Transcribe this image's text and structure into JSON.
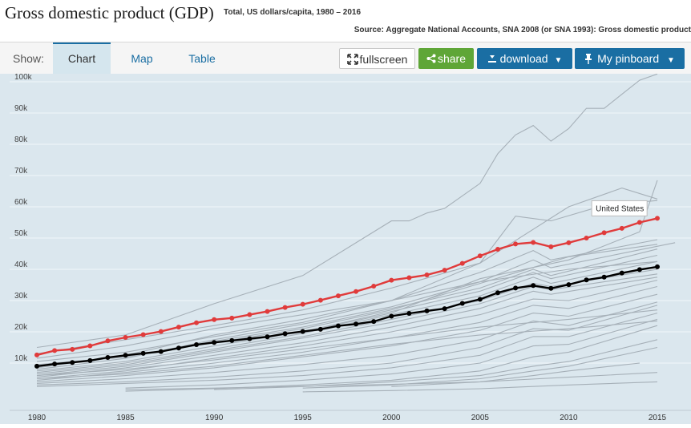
{
  "header": {
    "title": "Gross domestic product (GDP)",
    "subtitle": "Total, US dollars/capita, 1980 – 2016",
    "source": "Source: Aggregate National Accounts, SNA 2008 (or SNA 1993): Gross domestic product"
  },
  "toolbar": {
    "show_label": "Show:",
    "tabs": [
      {
        "label": "Chart"
      },
      {
        "label": "Map"
      },
      {
        "label": "Table"
      }
    ],
    "fullscreen_label": "fullscreen",
    "share_label": "share",
    "download_label": "download",
    "pinboard_label": "My pinboard"
  },
  "colors": {
    "highlight": "#e03b3b",
    "average": "#000000",
    "background_lines": "#a6b0b8",
    "plot_bg": "#dbe7ee",
    "brand": "#1a6ea3",
    "share": "#5fa637"
  },
  "icons": [
    "fullscreen-icon",
    "share-icon",
    "download-icon",
    "pin-icon",
    "chevron-down-icon"
  ],
  "chart_data": {
    "type": "line",
    "title": "Gross domestic product (GDP)",
    "subtitle": "Total, US dollars/capita, 1980 – 2016",
    "ylim": [
      0,
      105000
    ],
    "xlim": [
      1980,
      2016
    ],
    "x_ticks": [
      "1980",
      "1985",
      "1990",
      "1995",
      "2000",
      "2005",
      "2010",
      "2015"
    ],
    "y_ticks": [
      {
        "value": 10000,
        "label": "10k"
      },
      {
        "value": 20000,
        "label": "20k"
      },
      {
        "value": 30000,
        "label": "30k"
      },
      {
        "value": 40000,
        "label": "40k"
      },
      {
        "value": 50000,
        "label": "50k"
      },
      {
        "value": 60000,
        "label": "60k"
      },
      {
        "value": 70000,
        "label": "70k"
      },
      {
        "value": 80000,
        "label": "80k"
      },
      {
        "value": 90000,
        "label": "90k"
      },
      {
        "value": 100000,
        "label": "100k"
      }
    ],
    "grid": true,
    "highlighted": {
      "name": "United States",
      "x": [
        1980,
        1981,
        1982,
        1983,
        1984,
        1985,
        1986,
        1987,
        1988,
        1989,
        1990,
        1991,
        1992,
        1993,
        1994,
        1995,
        1996,
        1997,
        1998,
        1999,
        2000,
        2001,
        2002,
        2003,
        2004,
        2005,
        2006,
        2007,
        2008,
        2009,
        2010,
        2011,
        2012,
        2013,
        2014,
        2015
      ],
      "values": [
        12600,
        14000,
        14400,
        15500,
        17100,
        18200,
        19100,
        20100,
        21500,
        22900,
        23900,
        24400,
        25500,
        26500,
        27800,
        28800,
        30100,
        31500,
        32900,
        34600,
        36500,
        37300,
        38200,
        39700,
        41900,
        44300,
        46400,
        48100,
        48600,
        47200,
        48500,
        50000,
        51700,
        53100,
        55000,
        56300
      ]
    },
    "average": {
      "x": [
        1980,
        1981,
        1982,
        1983,
        1984,
        1985,
        1986,
        1987,
        1988,
        1989,
        1990,
        1991,
        1992,
        1993,
        1994,
        1995,
        1996,
        1997,
        1998,
        1999,
        2000,
        2001,
        2002,
        2003,
        2004,
        2005,
        2006,
        2007,
        2008,
        2009,
        2010,
        2011,
        2012,
        2013,
        2014,
        2015
      ],
      "values": [
        9000,
        9700,
        10200,
        10800,
        11800,
        12500,
        13100,
        13700,
        14800,
        15900,
        16600,
        17200,
        17800,
        18400,
        19400,
        20100,
        20800,
        21900,
        22500,
        23300,
        25000,
        25900,
        26700,
        27400,
        29100,
        30400,
        32500,
        34000,
        34800,
        33900,
        35100,
        36600,
        37500,
        38800,
        39900,
        40800
      ]
    },
    "background_series": [
      {
        "x": [
          1980,
          1985,
          1990,
          1995,
          2000,
          2001,
          2002,
          2003,
          2005,
          2006,
          2007,
          2008,
          2009,
          2010,
          2011,
          2012,
          2013,
          2014,
          2015
        ],
        "values": [
          15000,
          19000,
          29000,
          38000,
          55500,
          55500,
          58000,
          59500,
          67500,
          77000,
          83000,
          86000,
          81000,
          85000,
          91500,
          91500,
          96000,
          100500,
          102500
        ]
      },
      {
        "x": [
          1980,
          1985,
          1990,
          1995,
          2000,
          2005,
          2010,
          2013,
          2015
        ],
        "values": [
          13000,
          17500,
          22000,
          27000,
          34000,
          42000,
          60000,
          66000,
          62500
        ]
      },
      {
        "x": [
          1980,
          1985,
          1990,
          1995,
          2000,
          2005,
          2007,
          2009,
          2012,
          2015
        ],
        "values": [
          10500,
          13500,
          18500,
          23000,
          30000,
          42000,
          57000,
          55500,
          60500,
          62000
        ]
      },
      {
        "x": [
          1995,
          2000,
          2005,
          2010,
          2014,
          2015
        ],
        "values": [
          20000,
          26000,
          37000,
          43000,
          52000,
          68500
        ]
      },
      {
        "x": [
          1980,
          1985,
          1990,
          1995,
          2000,
          2005,
          2008,
          2009,
          2015
        ],
        "values": [
          8500,
          12500,
          19000,
          24000,
          30000,
          39000,
          46000,
          43000,
          49500
        ]
      },
      {
        "x": [
          1980,
          1985,
          1990,
          1995,
          2000,
          2005,
          2008,
          2009,
          2016
        ],
        "values": [
          8000,
          11500,
          17500,
          22500,
          28000,
          36000,
          43000,
          40500,
          48500
        ]
      },
      {
        "x": [
          1980,
          1985,
          1990,
          1995,
          2000,
          2005,
          2008,
          2009,
          2015
        ],
        "values": [
          9500,
          12000,
          17000,
          21500,
          27500,
          34000,
          40000,
          38000,
          46500
        ]
      },
      {
        "x": [
          1980,
          1985,
          1990,
          1995,
          2000,
          2005,
          2008,
          2009,
          2015
        ],
        "values": [
          7500,
          10500,
          15500,
          20000,
          26500,
          33000,
          39000,
          37000,
          44500
        ]
      },
      {
        "x": [
          1980,
          1985,
          1990,
          1995,
          2000,
          2005,
          2008,
          2009,
          2015
        ],
        "values": [
          7000,
          10000,
          14500,
          19500,
          25500,
          31500,
          37500,
          35500,
          42500
        ]
      },
      {
        "x": [
          1980,
          1985,
          1990,
          1995,
          2000,
          2005,
          2008,
          2009,
          2015
        ],
        "values": [
          6500,
          9500,
          14000,
          18500,
          24000,
          30000,
          35500,
          34500,
          40000
        ]
      },
      {
        "x": [
          1980,
          1985,
          1990,
          1995,
          2000,
          2005,
          2008,
          2009,
          2015
        ],
        "values": [
          6000,
          9000,
          13500,
          18000,
          23000,
          29000,
          34500,
          33500,
          38500
        ]
      },
      {
        "x": [
          1980,
          1985,
          1990,
          1995,
          2000,
          2005,
          2008,
          2009,
          2015
        ],
        "values": [
          5500,
          8500,
          12500,
          16500,
          21500,
          27500,
          33000,
          32000,
          37500
        ]
      },
      {
        "x": [
          1980,
          1985,
          1990,
          1995,
          2000,
          2005,
          2008,
          2010,
          2015
        ],
        "values": [
          5000,
          7500,
          11500,
          15500,
          20000,
          25500,
          30500,
          30000,
          36500
        ]
      },
      {
        "x": [
          1980,
          1985,
          1990,
          1995,
          2000,
          2005,
          2008,
          2010,
          2015
        ],
        "values": [
          4500,
          7000,
          10000,
          13500,
          18000,
          23000,
          28500,
          27500,
          34500
        ]
      },
      {
        "x": [
          1980,
          1985,
          1990,
          1995,
          2000,
          2005,
          2008,
          2010,
          2015
        ],
        "values": [
          4000,
          6000,
          8500,
          12000,
          15500,
          20500,
          26000,
          25000,
          32000
        ]
      },
      {
        "x": [
          1980,
          1985,
          1990,
          1995,
          2000,
          2005,
          2008,
          2010,
          2015
        ],
        "values": [
          3500,
          5000,
          7000,
          9500,
          12500,
          17500,
          23500,
          22000,
          29500
        ]
      },
      {
        "x": [
          1980,
          1985,
          1990,
          1995,
          2000,
          2005,
          2008,
          2010,
          2015
        ],
        "values": [
          3000,
          4000,
          5500,
          7500,
          10000,
          15000,
          21000,
          20500,
          28500
        ]
      },
      {
        "x": [
          1980,
          1985,
          1990,
          1995,
          2000,
          2005,
          2008,
          2010,
          2015
        ],
        "values": [
          2500,
          3500,
          4500,
          6000,
          8500,
          12500,
          18500,
          18500,
          26000
        ]
      },
      {
        "x": [
          1985,
          1990,
          1995,
          2000,
          2005,
          2008,
          2010,
          2015
        ],
        "values": [
          2000,
          3000,
          4500,
          6500,
          10000,
          15500,
          16000,
          24000
        ]
      },
      {
        "x": [
          1985,
          1990,
          1995,
          2000,
          2005,
          2008,
          2010,
          2015
        ],
        "values": [
          1000,
          1800,
          3000,
          4500,
          7500,
          12000,
          13500,
          22000
        ]
      },
      {
        "x": [
          1990,
          1995,
          2000,
          2005,
          2008,
          2010,
          2015
        ],
        "values": [
          1500,
          2500,
          4000,
          6000,
          9000,
          10500,
          17500
        ]
      },
      {
        "x": [
          1995,
          2000,
          2005,
          2008,
          2010,
          2015
        ],
        "values": [
          2000,
          3000,
          5000,
          7500,
          9000,
          15000
        ]
      },
      {
        "x": [
          2000,
          2005,
          2008,
          2010,
          2014
        ],
        "values": [
          2500,
          4000,
          6000,
          7500,
          10000
        ]
      },
      {
        "x": [
          1985,
          1990,
          1995,
          2000,
          2005,
          2010,
          2015
        ],
        "values": [
          1500,
          2000,
          2600,
          3200,
          4000,
          5500,
          7000
        ]
      },
      {
        "x": [
          1995,
          2000,
          2005,
          2010,
          2015
        ],
        "values": [
          800,
          1200,
          1800,
          3000,
          4000
        ]
      },
      {
        "x": [
          1980,
          1985,
          1990,
          1995,
          2000,
          2005,
          2010,
          2015
        ],
        "values": [
          11500,
          15500,
          21000,
          25500,
          30000,
          36000,
          40000,
          42500
        ]
      },
      {
        "x": [
          1980,
          1985,
          1990,
          1995,
          2000,
          2005,
          2010,
          2015
        ],
        "values": [
          9000,
          12000,
          16500,
          21000,
          27000,
          35500,
          44000,
          48000
        ]
      },
      {
        "x": [
          1980,
          1985,
          1990,
          1995,
          2000,
          2005,
          2010,
          2015
        ],
        "values": [
          6000,
          8000,
          11000,
          14500,
          18000,
          21500,
          24000,
          27000
        ]
      },
      {
        "x": [
          1980,
          1985,
          1990,
          1995,
          2000,
          2005,
          2010,
          2015
        ],
        "values": [
          5000,
          6500,
          9000,
          12500,
          16000,
          19000,
          21000,
          23500
        ]
      }
    ],
    "annotation": "United States"
  }
}
